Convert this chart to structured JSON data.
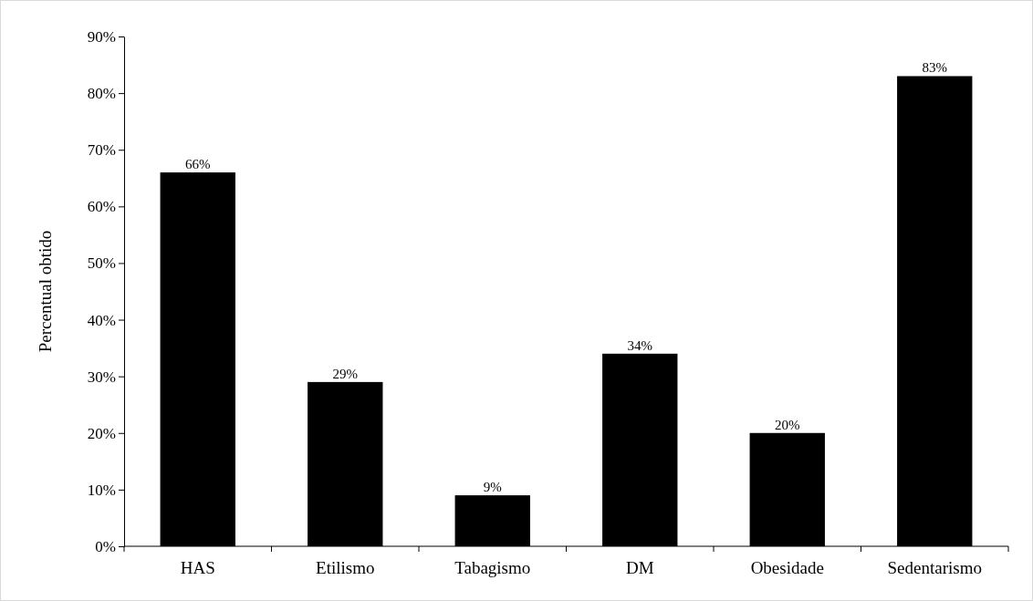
{
  "chart_data": {
    "type": "bar",
    "ylabel": "Percentual obtido",
    "categories": [
      "HAS",
      "Etilismo",
      "Tabagismo",
      "DM",
      "Obesidade",
      "Sedentarismo"
    ],
    "values": [
      66,
      29,
      9,
      34,
      20,
      83
    ],
    "value_labels": [
      "66%",
      "29%",
      "9%",
      "34%",
      "20%",
      "83%"
    ],
    "color": "#000000",
    "ylim": [
      0,
      90
    ],
    "yticks": [
      {
        "value": 0,
        "label": "0%"
      },
      {
        "value": 10,
        "label": "10%"
      },
      {
        "value": 20,
        "label": "20%"
      },
      {
        "value": 30,
        "label": "30%"
      },
      {
        "value": 40,
        "label": "40%"
      },
      {
        "value": 50,
        "label": "50%"
      },
      {
        "value": 60,
        "label": "60%"
      },
      {
        "value": 70,
        "label": "70%"
      },
      {
        "value": 80,
        "label": "80%"
      },
      {
        "value": 90,
        "label": "90%"
      }
    ],
    "grid": false
  }
}
